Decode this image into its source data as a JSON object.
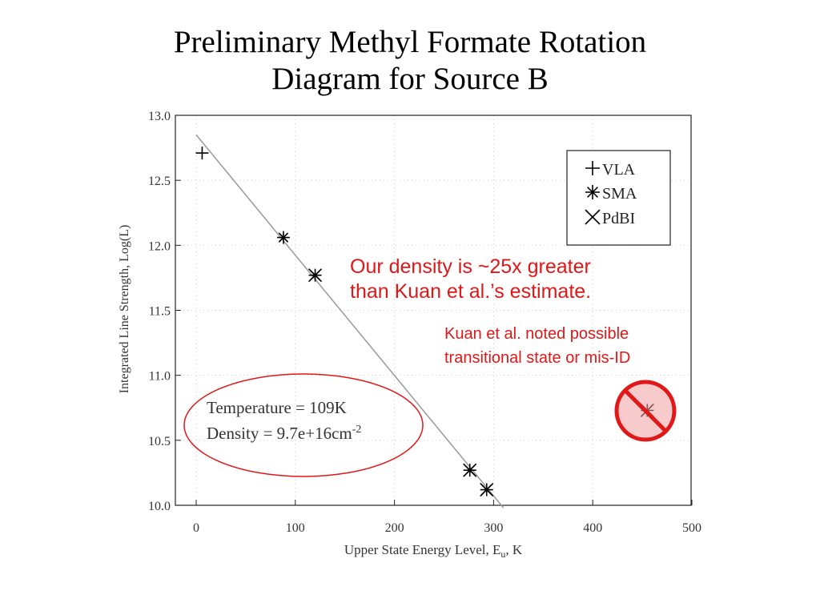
{
  "slide": {
    "title_line1": "Preliminary Methyl Formate Rotation",
    "title_line2": "Diagram for Source B"
  },
  "notes": {
    "density_line1": "Our density is ~25x greater",
    "density_line2": "than Kuan et al.’s estimate.",
    "kuan_line1": "Kuan et al. noted possible",
    "kuan_line2": "transitional state or mis-ID"
  },
  "fit_box": {
    "temperature": "Temperature = 109K",
    "density_prefix": "Density =  9.7e+16cm",
    "density_exp": "-2"
  },
  "colors": {
    "annotation": "#e01818",
    "fit_line": "#999999",
    "marker": "#000000",
    "prohibition_fill": "#f0a0a0"
  },
  "chart_data": {
    "type": "scatter",
    "title": "",
    "xlabel": "Upper State Energy Level, E",
    "xlabel_sub": "u",
    "xlabel_suffix": ", K",
    "ylabel": "Integrated Line Strength, Log(L)",
    "xlim": [
      -20,
      500
    ],
    "ylim": [
      10.0,
      13.0
    ],
    "x_ticks": [
      0,
      100,
      200,
      300,
      400,
      500
    ],
    "y_ticks": [
      10.0,
      10.5,
      11.0,
      11.5,
      12.0,
      12.5,
      13.0
    ],
    "legend_position": "top-right",
    "series": [
      {
        "name": "VLA",
        "marker": "plus",
        "points": [
          [
            6,
            12.71
          ]
        ]
      },
      {
        "name": "SMA",
        "marker": "asterisk",
        "points": [
          [
            88,
            12.06
          ],
          [
            120,
            11.77
          ],
          [
            276,
            10.27
          ],
          [
            293,
            10.12
          ],
          [
            455,
            10.73
          ]
        ]
      },
      {
        "name": "PdBI",
        "marker": "cross",
        "points": [
          [
            120,
            11.77
          ],
          [
            276,
            10.27
          ],
          [
            293,
            10.12
          ],
          [
            455,
            10.73
          ]
        ]
      }
    ],
    "fit_line": {
      "x": [
        0,
        310
      ],
      "y": [
        12.85,
        9.98
      ]
    },
    "excluded_point": [
      455,
      10.73
    ]
  }
}
